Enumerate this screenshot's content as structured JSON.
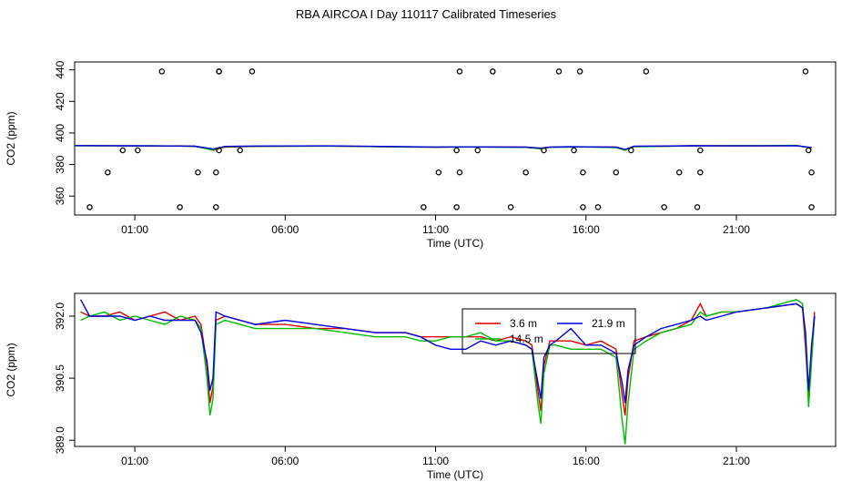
{
  "title": "RBA AIRCOA I  Day 110117  Calibrated Timeseries",
  "colors": {
    "3.6 m": "#dd0000",
    "14.5 m": "#00bb00",
    "21.9 m": "#0000dd",
    "flagged": "#000000"
  },
  "chart_data": [
    {
      "type": "line",
      "panel": "top",
      "xlabel": "Time (UTC)",
      "ylabel": "CO2 (ppm)",
      "xticks": [
        "01:00",
        "06:00",
        "11:00",
        "16:00",
        "21:00"
      ],
      "yticks": [
        "360",
        "380",
        "400",
        "420",
        "440"
      ],
      "xlim": [
        -1.0,
        24.3
      ],
      "ylim": [
        348,
        445
      ],
      "grid": false,
      "series": [
        {
          "name": "3.6 m",
          "x": [
            -1.0,
            0.5,
            1.5,
            2.5,
            3.0,
            3.5,
            3.6,
            4.0,
            5.0,
            7.4,
            10.0,
            11.0,
            12.0,
            14.0,
            14.5,
            14.8,
            15.5,
            16.0,
            17.0,
            17.3,
            17.6,
            18.5,
            19.5,
            20.5,
            22.0,
            23.0,
            23.5
          ],
          "y": [
            392,
            391.8,
            391.7,
            391.8,
            391.6,
            390,
            389,
            391,
            391.5,
            391.7,
            391.2,
            391.0,
            391.2,
            391.0,
            390.2,
            391,
            391.2,
            391.2,
            391,
            389.5,
            391.5,
            391.6,
            391.9,
            391.9,
            391.9,
            392.0,
            390.5
          ]
        },
        {
          "name": "14.5 m",
          "x": [
            -1.0,
            0.5,
            1.5,
            2.5,
            3.0,
            3.5,
            3.6,
            4.0,
            5.0,
            7.4,
            10.0,
            11.0,
            12.0,
            14.0,
            14.5,
            14.8,
            15.5,
            16.0,
            17.0,
            17.3,
            17.6,
            18.5,
            19.5,
            20.5,
            22.0,
            23.0,
            23.5
          ],
          "y": [
            391.8,
            391.8,
            391.9,
            391.7,
            391.5,
            389.5,
            389.2,
            391.3,
            391.6,
            391.7,
            391.1,
            391.0,
            391.1,
            390.9,
            389.8,
            391,
            391.0,
            391.1,
            390.8,
            389.0,
            391.3,
            391.5,
            391.8,
            391.9,
            392.0,
            392.1,
            390.4
          ]
        },
        {
          "name": "21.9 m",
          "x": [
            -1.0,
            0.5,
            1.5,
            2.5,
            3.0,
            3.5,
            3.6,
            4.0,
            5.0,
            7.4,
            10.0,
            11.0,
            12.0,
            14.0,
            14.5,
            14.8,
            15.5,
            16.0,
            17.0,
            17.3,
            17.6,
            18.5,
            19.5,
            20.5,
            22.0,
            23.0,
            23.5
          ],
          "y": [
            392,
            391.9,
            391.8,
            391.7,
            391.6,
            390.2,
            389.8,
            391.5,
            391.7,
            391.8,
            391.3,
            391.1,
            391.2,
            391.0,
            390.4,
            391,
            391.3,
            391.2,
            391.0,
            389.6,
            391.6,
            391.7,
            391.9,
            391.8,
            391.8,
            391.9,
            390.8
          ]
        }
      ],
      "flagged_points": {
        "x": [
          -0.5,
          0.1,
          0.6,
          1.1,
          1.9,
          2.5,
          3.1,
          3.7,
          3.8,
          3.8,
          3.7,
          3.8,
          4.5,
          4.9,
          10.6,
          11.1,
          11.7,
          11.8,
          11.8,
          11.7,
          12.4,
          12.9,
          13.5,
          14.0,
          14.6,
          15.1,
          15.6,
          15.8,
          15.9,
          15.9,
          16.4,
          17.0,
          17.5,
          18.0,
          18.6,
          19.1,
          19.7,
          19.8,
          19.8,
          23.3,
          23.4,
          23.5,
          23.5
        ],
        "y": [
          353,
          375,
          389,
          389,
          439,
          353,
          375,
          375,
          389,
          439,
          353,
          439,
          389,
          439,
          353,
          375,
          389,
          439,
          375,
          353,
          389,
          439,
          353,
          375,
          389,
          439,
          389,
          439,
          375,
          353,
          353,
          375,
          389,
          439,
          353,
          375,
          353,
          375,
          389,
          439,
          389,
          375,
          353
        ]
      }
    },
    {
      "type": "line",
      "panel": "bottom",
      "xlabel": "Time (UTC)",
      "ylabel": "CO2 (ppm)",
      "xticks": [
        "01:00",
        "06:00",
        "11:00",
        "16:00",
        "21:00"
      ],
      "yticks": [
        "389.0",
        "390.5",
        "392.0"
      ],
      "xlim": [
        -1.0,
        24.3
      ],
      "ylim": [
        388.85,
        392.55
      ],
      "grid": false,
      "legend": {
        "placement": "top-center",
        "entries": [
          "3.6 m",
          "21.9 m",
          "14.5 m"
        ]
      },
      "series": [
        {
          "name": "3.6 m",
          "x": [
            -0.8,
            -0.5,
            0.0,
            0.5,
            1.0,
            1.5,
            2.0,
            2.5,
            3.0,
            3.2,
            3.4,
            3.5,
            3.6,
            3.7,
            4.0,
            4.5,
            5.0,
            6.0,
            7.0,
            8.0,
            9.0,
            10.0,
            10.5,
            11.0,
            11.5,
            12.0,
            12.5,
            13.0,
            13.5,
            14.0,
            14.2,
            14.4,
            14.5,
            14.6,
            14.8,
            15.0,
            15.5,
            16.0,
            16.5,
            17.0,
            17.2,
            17.3,
            17.4,
            17.6,
            18.0,
            18.5,
            19.0,
            19.5,
            19.8,
            20.0,
            20.5,
            21.0,
            22.0,
            23.0,
            23.2,
            23.3,
            23.4,
            23.5,
            23.6
          ],
          "y": [
            392.1,
            392.0,
            392.0,
            392.1,
            391.9,
            392.0,
            392.1,
            391.9,
            392.0,
            391.8,
            390.8,
            389.9,
            390.3,
            391.9,
            392.0,
            391.9,
            391.8,
            391.8,
            391.7,
            391.7,
            391.6,
            391.6,
            391.5,
            391.5,
            391.5,
            391.5,
            391.5,
            391.4,
            391.5,
            391.4,
            391.3,
            390.2,
            389.7,
            390.8,
            391.4,
            391.4,
            391.4,
            391.3,
            391.4,
            391.2,
            390.1,
            389.6,
            390.5,
            391.4,
            391.5,
            391.6,
            391.7,
            391.9,
            392.3,
            392.0,
            392.1,
            392.1,
            392.2,
            392.3,
            392.2,
            391.2,
            390.0,
            391.2,
            392.1
          ]
        },
        {
          "name": "14.5 m",
          "x": [
            -0.8,
            -0.5,
            0.0,
            0.5,
            1.0,
            1.5,
            2.0,
            2.5,
            3.0,
            3.2,
            3.4,
            3.5,
            3.6,
            3.7,
            4.0,
            4.5,
            5.0,
            6.0,
            7.0,
            8.0,
            9.0,
            10.0,
            10.5,
            11.0,
            11.5,
            12.0,
            12.5,
            13.0,
            13.5,
            14.0,
            14.2,
            14.4,
            14.5,
            14.6,
            14.8,
            15.0,
            15.5,
            16.0,
            16.5,
            17.0,
            17.2,
            17.3,
            17.4,
            17.6,
            18.0,
            18.5,
            19.0,
            19.5,
            19.8,
            20.0,
            20.5,
            21.0,
            22.0,
            23.0,
            23.2,
            23.3,
            23.4,
            23.5,
            23.6
          ],
          "y": [
            391.9,
            392.0,
            392.1,
            391.9,
            392.0,
            391.9,
            391.8,
            392.0,
            391.9,
            391.7,
            390.5,
            389.6,
            390.0,
            391.8,
            391.9,
            391.8,
            391.7,
            391.7,
            391.7,
            391.6,
            391.5,
            391.5,
            391.4,
            391.4,
            391.5,
            391.5,
            391.6,
            391.4,
            391.4,
            391.3,
            391.2,
            389.9,
            389.4,
            390.6,
            391.3,
            391.3,
            391.2,
            391.2,
            391.2,
            391.0,
            389.5,
            388.9,
            389.9,
            391.2,
            391.4,
            391.6,
            391.7,
            391.8,
            392.1,
            392.0,
            392.1,
            392.1,
            392.2,
            392.4,
            392.3,
            391.4,
            389.8,
            390.9,
            392.0
          ]
        },
        {
          "name": "21.9 m",
          "x": [
            -0.8,
            -0.5,
            0.0,
            0.5,
            1.0,
            1.5,
            2.0,
            2.5,
            3.0,
            3.2,
            3.4,
            3.5,
            3.6,
            3.7,
            4.0,
            4.5,
            5.0,
            6.0,
            7.0,
            8.0,
            9.0,
            10.0,
            10.5,
            11.0,
            11.5,
            12.0,
            12.5,
            13.0,
            13.5,
            14.0,
            14.2,
            14.4,
            14.5,
            14.6,
            14.8,
            15.0,
            15.5,
            16.0,
            16.5,
            17.0,
            17.2,
            17.3,
            17.4,
            17.6,
            18.0,
            18.5,
            19.0,
            19.5,
            19.8,
            20.0,
            20.5,
            21.0,
            22.0,
            23.0,
            23.2,
            23.3,
            23.4,
            23.5,
            23.6
          ],
          "y": [
            392.4,
            392.0,
            392.0,
            392.0,
            391.9,
            392.0,
            391.9,
            391.9,
            391.9,
            391.6,
            390.9,
            390.2,
            390.5,
            392.1,
            392.0,
            391.9,
            391.8,
            391.9,
            391.8,
            391.7,
            391.6,
            391.6,
            391.5,
            391.3,
            391.2,
            391.2,
            391.4,
            391.3,
            391.4,
            391.3,
            391.2,
            390.4,
            390.0,
            391.0,
            391.3,
            391.4,
            391.7,
            391.3,
            391.3,
            391.1,
            390.4,
            389.9,
            390.7,
            391.3,
            391.5,
            391.7,
            391.8,
            391.9,
            392.0,
            391.9,
            392.0,
            392.1,
            392.2,
            392.3,
            392.2,
            391.6,
            390.2,
            391.3,
            392.0
          ]
        }
      ]
    }
  ]
}
